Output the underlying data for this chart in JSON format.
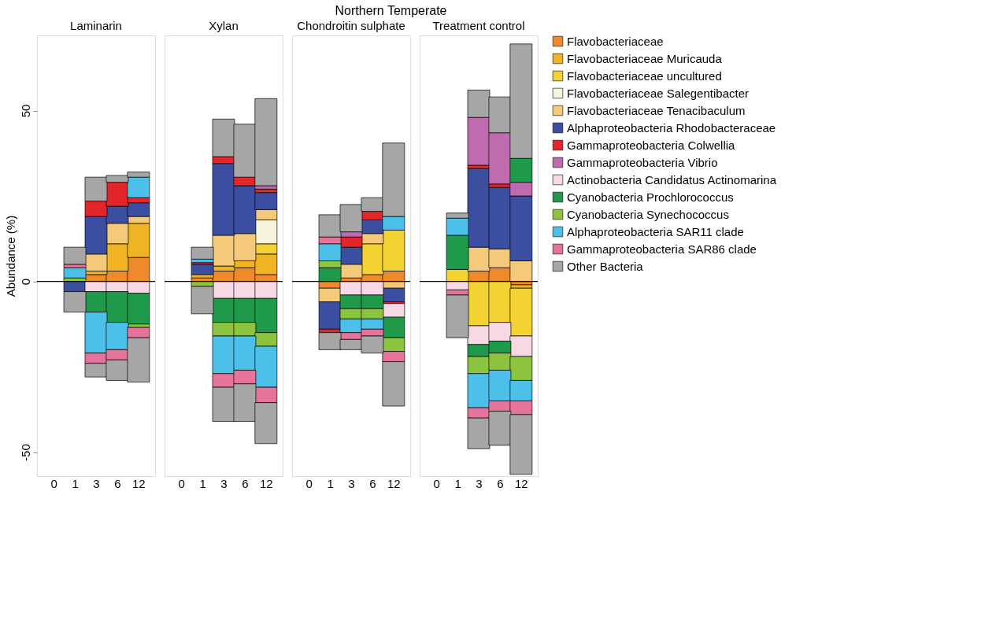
{
  "chart_data": [
    {
      "type": "bar",
      "stacked": true,
      "subtitle": "Laminarin",
      "ylabel": "Abundance (%)",
      "categories": [
        "0",
        "1",
        "3",
        "6",
        "12"
      ],
      "ylim": [
        -57,
        72
      ],
      "yticks": [
        -50,
        0,
        50
      ],
      "grid": false,
      "ref_lines": [
        {
          "axis": "y",
          "value": 0,
          "color": "#000000"
        }
      ],
      "series": [
        {
          "color": "#ee8a2c",
          "values": [
            null,
            null,
            2,
            3,
            7
          ]
        },
        {
          "color": "#f0b323",
          "values": [
            null,
            null,
            1,
            8,
            10
          ]
        },
        {
          "color": "#f3d331",
          "values": [
            null,
            null,
            null,
            null,
            null
          ]
        },
        {
          "color": "#f8f4dc",
          "values": [
            null,
            null,
            null,
            null,
            null
          ]
        },
        {
          "color": "#f5c97a",
          "values": [
            null,
            null,
            5,
            6,
            2
          ]
        },
        {
          "color": "#3c4ea0",
          "values": [
            null,
            -3,
            11,
            5,
            4
          ]
        },
        {
          "color": "#e3262a",
          "values": [
            null,
            null,
            4.5,
            7,
            1.5
          ]
        },
        {
          "color": "#c06ab0",
          "values": [
            null,
            null,
            null,
            null,
            null
          ]
        },
        {
          "color": "#f7d9e6",
          "values": [
            null,
            null,
            -3,
            -3,
            -3.5
          ]
        },
        {
          "color": "#1f9a4a",
          "values": [
            null,
            null,
            -6,
            -9,
            -9
          ]
        },
        {
          "color": "#8cc43f",
          "values": [
            null,
            1,
            null,
            null,
            -1
          ]
        },
        {
          "color": "#4cc0e8",
          "values": [
            null,
            3,
            -12,
            -8,
            6
          ]
        },
        {
          "color": "#e5739c",
          "values": [
            null,
            1,
            -3,
            -3,
            -3
          ]
        },
        {
          "color": "#a6a6a6",
          "values": [
            null,
            5,
            7,
            2,
            1.5
          ]
        },
        {
          "color": "#a6a6a6",
          "values": [
            null,
            -6,
            -4,
            -6,
            -13
          ]
        }
      ]
    },
    {
      "type": "bar",
      "stacked": true,
      "subtitle": "Xylan",
      "categories": [
        "0",
        "1",
        "3",
        "6",
        "12"
      ],
      "ylim": [
        -57,
        72
      ],
      "yticks": [
        -50,
        0,
        50
      ],
      "tick_labels": "x",
      "grid": false,
      "ref_lines": [
        {
          "axis": "y",
          "value": 0,
          "color": "#000000"
        }
      ],
      "series": [
        {
          "color": "#ee8a2c",
          "values": [
            null,
            1,
            3,
            4,
            2
          ]
        },
        {
          "color": "#f0b323",
          "values": [
            null,
            1,
            1.5,
            2,
            6
          ]
        },
        {
          "color": "#f3d331",
          "values": [
            null,
            null,
            null,
            null,
            3
          ]
        },
        {
          "color": "#f8f4dc",
          "values": [
            null,
            null,
            null,
            null,
            7
          ]
        },
        {
          "color": "#f5c97a",
          "values": [
            null,
            null,
            9,
            8,
            3
          ]
        },
        {
          "color": "#3c4ea0",
          "values": [
            null,
            3,
            21,
            14,
            5
          ]
        },
        {
          "color": "#e3262a",
          "values": [
            null,
            0.5,
            2,
            2.5,
            1
          ]
        },
        {
          "color": "#c06ab0",
          "values": [
            null,
            null,
            null,
            null,
            1
          ]
        },
        {
          "color": "#f7d9e6",
          "values": [
            null,
            null,
            -5,
            -5,
            -5
          ]
        },
        {
          "color": "#1f9a4a",
          "values": [
            null,
            null,
            -7,
            -7,
            -10
          ]
        },
        {
          "color": "#8cc43f",
          "values": [
            null,
            -1.5,
            -4,
            -4,
            -4
          ]
        },
        {
          "color": "#4cc0e8",
          "values": [
            null,
            1,
            -11,
            -10,
            -12
          ]
        },
        {
          "color": "#e5739c",
          "values": [
            null,
            null,
            -4,
            -4,
            -4.5
          ]
        },
        {
          "color": "#a6a6a6",
          "values": [
            null,
            3.5,
            11,
            15.5,
            25.5
          ]
        },
        {
          "color": "#a6a6a6",
          "values": [
            null,
            -8,
            -10,
            -11,
            -12
          ]
        }
      ]
    },
    {
      "type": "bar",
      "stacked": true,
      "title": "Northern Temperate",
      "subtitle": "Chondroitin sulphate",
      "categories": [
        "0",
        "1",
        "3",
        "6",
        "12"
      ],
      "ylim": [
        -57,
        72
      ],
      "yticks": [
        -50,
        0,
        50
      ],
      "tick_labels": "x",
      "grid": false,
      "ref_lines": [
        {
          "axis": "y",
          "value": 0,
          "color": "#000000"
        }
      ],
      "series": [
        {
          "color": "#ee8a2c",
          "values": [
            null,
            -2,
            1,
            2,
            3
          ]
        },
        {
          "color": "#f0b323",
          "values": [
            null,
            null,
            null,
            null,
            null
          ]
        },
        {
          "color": "#f3d331",
          "values": [
            null,
            null,
            null,
            9,
            12
          ]
        },
        {
          "color": "#f8f4dc",
          "values": [
            null,
            null,
            null,
            null,
            null
          ]
        },
        {
          "color": "#f5c97a",
          "values": [
            null,
            -4,
            4,
            3,
            -2
          ]
        },
        {
          "color": "#3c4ea0",
          "values": [
            null,
            -8,
            5,
            4,
            -4
          ]
        },
        {
          "color": "#e3262a",
          "values": [
            null,
            -1,
            3,
            2.5,
            -0.5
          ]
        },
        {
          "color": "#c06ab0",
          "values": [
            null,
            null,
            1.5,
            null,
            null
          ]
        },
        {
          "color": "#f7d9e6",
          "values": [
            null,
            null,
            -4,
            -4,
            -4
          ]
        },
        {
          "color": "#1f9a4a",
          "values": [
            null,
            4,
            -4,
            -4,
            -6
          ]
        },
        {
          "color": "#8cc43f",
          "values": [
            null,
            2,
            -3,
            -3,
            -4
          ]
        },
        {
          "color": "#4cc0e8",
          "values": [
            null,
            5,
            -4,
            -3,
            4
          ]
        },
        {
          "color": "#e5739c",
          "values": [
            null,
            2,
            -2,
            -2,
            -3
          ]
        },
        {
          "color": "#a6a6a6",
          "values": [
            null,
            6.5,
            8,
            4,
            21.5
          ]
        },
        {
          "color": "#a6a6a6",
          "values": [
            null,
            -5,
            -3,
            -5,
            -13
          ]
        }
      ]
    },
    {
      "type": "bar",
      "stacked": true,
      "subtitle": "Treatment control",
      "categories": [
        "0",
        "1",
        "3",
        "6",
        "12"
      ],
      "ylim": [
        -57,
        72
      ],
      "yticks": [
        -50,
        0,
        50
      ],
      "tick_labels": "x",
      "grid": false,
      "legend": "right",
      "ref_lines": [
        {
          "axis": "y",
          "value": 0,
          "color": "#000000"
        }
      ],
      "series": [
        {
          "name": "Flavobacteriaceae",
          "color": "#ee8a2c",
          "values": [
            null,
            null,
            3,
            4,
            -1
          ]
        },
        {
          "name": "Flavobacteriaceae Muricauda",
          "color": "#f0b323",
          "values": [
            null,
            null,
            null,
            null,
            -1
          ]
        },
        {
          "name": "Flavobacteriaceae uncultured",
          "color": "#f3d331",
          "values": [
            null,
            3.5,
            -13,
            -12,
            -14
          ]
        },
        {
          "name": "Flavobacteriaceae Salegentibacter",
          "color": "#f8f4dc",
          "values": [
            null,
            null,
            null,
            null,
            null
          ]
        },
        {
          "name": "Flavobacteriaceae Tenacibaculum",
          "color": "#f5c97a",
          "values": [
            null,
            null,
            7,
            5.5,
            6
          ]
        },
        {
          "name": "Alphaproteobacteria Rhodobacteraceae",
          "color": "#3c4ea0",
          "values": [
            null,
            null,
            23,
            18,
            19
          ]
        },
        {
          "name": "Gammaproteobacteria Colwellia",
          "color": "#e3262a",
          "values": [
            null,
            null,
            1,
            1,
            null
          ]
        },
        {
          "name": "Gammaproteobacteria Vibrio",
          "color": "#c06ab0",
          "values": [
            null,
            null,
            14,
            15,
            4
          ]
        },
        {
          "name": "Actinobacteria Candidatus Actinomarina",
          "color": "#f7d9e6",
          "values": [
            null,
            -2.5,
            -5.5,
            -5.5,
            -6
          ]
        },
        {
          "name": "Cyanobacteria Prochlorococcus",
          "color": "#1f9a4a",
          "values": [
            null,
            10,
            -3.5,
            -3.5,
            7
          ]
        },
        {
          "name": "Cyanobacteria Synechococcus",
          "color": "#8cc43f",
          "values": [
            null,
            null,
            -5,
            -5,
            -7
          ]
        },
        {
          "name": "Alphaproteobacteria SAR11 clade",
          "color": "#4cc0e8",
          "values": [
            null,
            5,
            -10,
            -9,
            -6
          ]
        },
        {
          "name": "Gammaproteobacteria SAR86 clade",
          "color": "#e5739c",
          "values": [
            null,
            -1.5,
            -3,
            -3,
            -4
          ]
        },
        {
          "name": "Other Bacteria",
          "color": "#a6a6a6",
          "values": [
            null,
            1.5,
            8,
            10.5,
            33.5
          ]
        },
        {
          "color": "#a6a6a6",
          "values": [
            null,
            -12.5,
            -9,
            -10,
            -17.5
          ]
        }
      ]
    }
  ]
}
